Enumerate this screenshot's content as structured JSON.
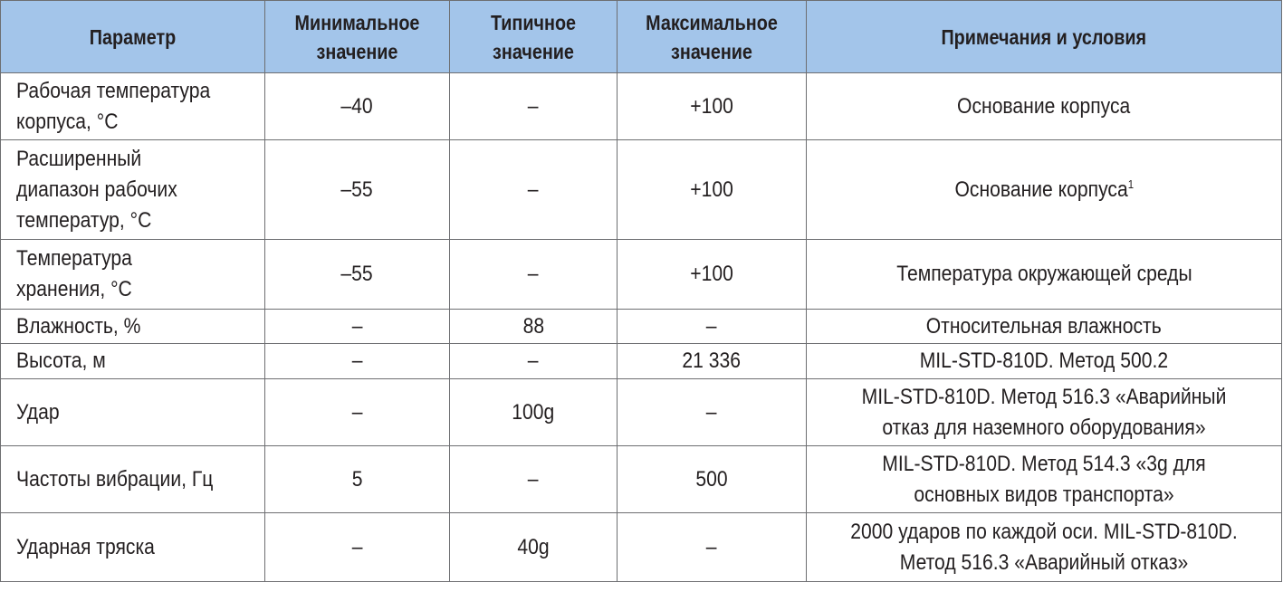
{
  "table": {
    "headers": [
      "Параметр",
      "Минимальное значение",
      "Типичное значение",
      "Максимальное значение",
      "Примечания и условия"
    ],
    "rows": [
      {
        "param": "Рабочая температура корпуса, °C",
        "min": "–40",
        "typ": "–",
        "max": "+100",
        "note": "Основание корпуса",
        "footnote": ""
      },
      {
        "param": "Расширенный диапазон рабочих температур, °C",
        "min": "–55",
        "typ": "–",
        "max": "+100",
        "note": "Основание корпуса",
        "footnote": "1"
      },
      {
        "param": "Температура хранения, °C",
        "min": "–55",
        "typ": "–",
        "max": "+100",
        "note": "Температура окружающей среды",
        "footnote": ""
      },
      {
        "param": "Влажность, %",
        "min": "–",
        "typ": "88",
        "max": "–",
        "note": "Относительная влажность",
        "footnote": ""
      },
      {
        "param": "Высота, м",
        "min": "–",
        "typ": "–",
        "max": "21 336",
        "note": "MIL-STD-810D. Метод 500.2",
        "footnote": ""
      },
      {
        "param": "Удар",
        "min": "–",
        "typ": "100g",
        "max": "–",
        "note": "MIL-STD-810D. Метод 516.3 «Аварийный отказ для наземного оборудования»",
        "footnote": ""
      },
      {
        "param": "Частоты вибрации, Гц",
        "min": "5",
        "typ": "–",
        "max": "500",
        "note": "MIL-STD-810D. Метод 514.3 «3g для основных видов транспорта»",
        "footnote": ""
      },
      {
        "param": "Ударная тряска",
        "min": "–",
        "typ": "40g",
        "max": "–",
        "note": "2000 ударов по каждой оси. MIL-STD-810D. Метод 516.3 «Аварийный отказ»",
        "footnote": ""
      }
    ]
  }
}
